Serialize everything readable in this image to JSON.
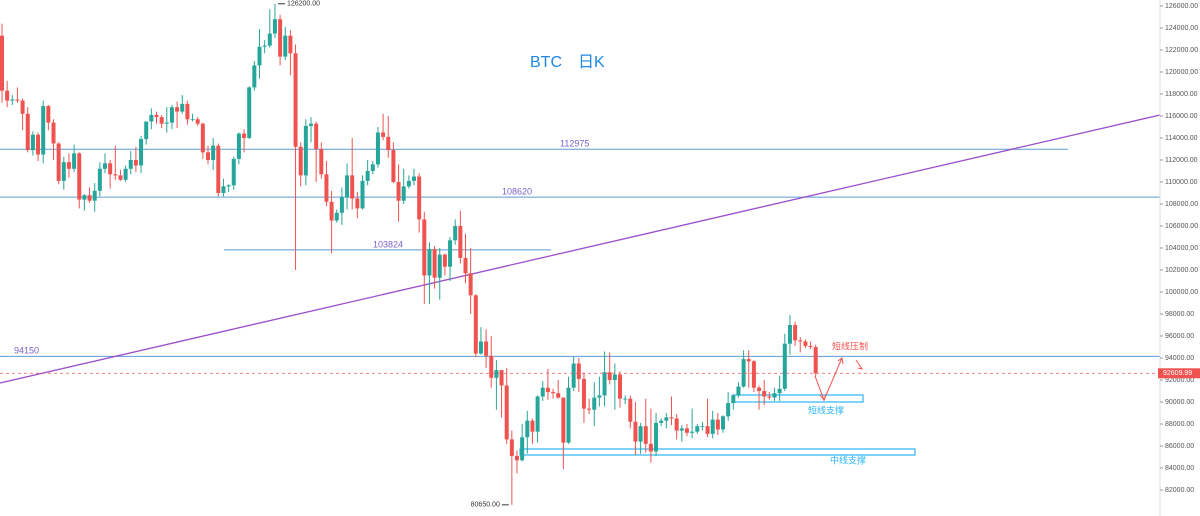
{
  "chart_data": {
    "type": "candlestick",
    "title": "BTC",
    "subtitle": "日K",
    "up_color": "#26a69a",
    "down_color": "#ef5350",
    "ylim": [
      79636,
      126545
    ],
    "yticks": [
      {
        "value": 82000,
        "label": "82000.00"
      },
      {
        "value": 84000,
        "label": "84000.00"
      },
      {
        "value": 86000,
        "label": "86000.00"
      },
      {
        "value": 88000,
        "label": "88000.00"
      },
      {
        "value": 90000,
        "label": "90000.00"
      },
      {
        "value": 92000,
        "label": "92000.00"
      },
      {
        "value": 94000,
        "label": "94000.00"
      },
      {
        "value": 96000,
        "label": "96000.00"
      },
      {
        "value": 98000,
        "label": "98000.00"
      },
      {
        "value": 100000,
        "label": "100000.00"
      },
      {
        "value": 102000,
        "label": "102000.00"
      },
      {
        "value": 104000,
        "label": "104000.00"
      },
      {
        "value": 106000,
        "label": "106000.00"
      },
      {
        "value": 108000,
        "label": "108000.00"
      },
      {
        "value": 110000,
        "label": "110000.00"
      },
      {
        "value": 112000,
        "label": "112000.00"
      },
      {
        "value": 114000,
        "label": "114000.00"
      },
      {
        "value": 116000,
        "label": "116000.00"
      },
      {
        "value": 118000,
        "label": "118000.00"
      },
      {
        "value": 120000,
        "label": "120000.00"
      },
      {
        "value": 122000,
        "label": "122000.00"
      },
      {
        "value": 124000,
        "label": "124000.00"
      },
      {
        "value": 126000,
        "label": "126000.00"
      }
    ],
    "high_label": {
      "value": 126200,
      "label": "126200.00"
    },
    "low_label": {
      "value": 80650,
      "label": "80650.00"
    },
    "levels": [
      112975,
      108620,
      103824,
      94150
    ],
    "current_price": 92609.99,
    "annotations": {
      "resistance": "短线压制",
      "short_support": "短线支撑",
      "mid_support": "中线支撑"
    },
    "candles": [
      [
        123300,
        124400,
        117200,
        118300
      ],
      [
        118300,
        119200,
        116800,
        117400
      ],
      [
        117400,
        117900,
        117000,
        117500
      ],
      [
        117500,
        118600,
        117200,
        117400
      ],
      [
        117400,
        117600,
        114700,
        116200
      ],
      [
        116200,
        116800,
        112700,
        112900
      ],
      [
        112900,
        114600,
        112400,
        114300
      ],
      [
        114300,
        114500,
        111900,
        112500
      ],
      [
        112500,
        117400,
        111700,
        116900
      ],
      [
        116900,
        117000,
        114700,
        115400
      ],
      [
        115400,
        115700,
        112000,
        113500
      ],
      [
        113500,
        113600,
        109800,
        110100
      ],
      [
        110100,
        112300,
        109300,
        111800
      ],
      [
        111800,
        112600,
        110400,
        111200
      ],
      [
        111200,
        113400,
        110900,
        112600
      ],
      [
        112600,
        112700,
        107600,
        108400
      ],
      [
        108400,
        108900,
        107400,
        108800
      ],
      [
        108800,
        109500,
        108100,
        108300
      ],
      [
        108300,
        109900,
        107300,
        109200
      ],
      [
        109200,
        111800,
        108700,
        111200
      ],
      [
        111200,
        112600,
        110800,
        111700
      ],
      [
        111700,
        112000,
        109400,
        110700
      ],
      [
        110700,
        113300,
        110200,
        110600
      ],
      [
        110600,
        111100,
        110100,
        110200
      ],
      [
        110200,
        111500,
        110000,
        111200
      ],
      [
        111200,
        112800,
        110700,
        112000
      ],
      [
        112000,
        113200,
        110900,
        111500
      ],
      [
        111500,
        114200,
        110800,
        113900
      ],
      [
        113900,
        115500,
        113400,
        115500
      ],
      [
        115500,
        116700,
        114800,
        116100
      ],
      [
        116100,
        116400,
        115300,
        115900
      ],
      [
        115900,
        116100,
        114900,
        115300
      ],
      [
        115300,
        116800,
        114500,
        115400
      ],
      [
        115400,
        117000,
        114800,
        116800
      ],
      [
        116800,
        117300,
        114900,
        116400
      ],
      [
        116400,
        117900,
        116200,
        117100
      ],
      [
        117100,
        117400,
        115200,
        115700
      ],
      [
        115700,
        116200,
        115500,
        115700
      ],
      [
        115700,
        115900,
        115100,
        115300
      ],
      [
        115300,
        115400,
        112100,
        112700
      ],
      [
        112700,
        113300,
        111600,
        112000
      ],
      [
        112000,
        114000,
        111100,
        113300
      ],
      [
        113300,
        113500,
        108700,
        109000
      ],
      [
        109000,
        110300,
        108700,
        109600
      ],
      [
        109600,
        109800,
        109100,
        109700
      ],
      [
        109700,
        112300,
        109300,
        112100
      ],
      [
        112100,
        114500,
        111600,
        114400
      ],
      [
        114400,
        114800,
        112700,
        114000
      ],
      [
        114000,
        118700,
        113900,
        118600
      ],
      [
        118600,
        121000,
        118300,
        120600
      ],
      [
        120600,
        123900,
        119400,
        122300
      ],
      [
        122300,
        122900,
        121700,
        122400
      ],
      [
        122400,
        125700,
        122200,
        123500
      ],
      [
        123500,
        126200,
        123100,
        124800
      ],
      [
        124800,
        125200,
        120600,
        121400
      ],
      [
        121400,
        124100,
        121100,
        123300
      ],
      [
        123300,
        123800,
        119700,
        121700
      ],
      [
        121700,
        122500,
        102000,
        113200
      ],
      [
        113200,
        113600,
        109600,
        110600
      ],
      [
        110600,
        115700,
        109700,
        115100
      ],
      [
        115100,
        115900,
        113600,
        115300
      ],
      [
        115300,
        115500,
        110000,
        113000
      ],
      [
        113000,
        113600,
        110300,
        110700
      ],
      [
        110700,
        111900,
        107800,
        108200
      ],
      [
        108200,
        109200,
        103500,
        106500
      ],
      [
        106500,
        107500,
        106300,
        107200
      ],
      [
        107200,
        109500,
        106100,
        108600
      ],
      [
        108600,
        111700,
        107500,
        110600
      ],
      [
        110600,
        114000,
        107500,
        108500
      ],
      [
        108500,
        109100,
        106700,
        107600
      ],
      [
        107600,
        110600,
        107500,
        110100
      ],
      [
        110100,
        112000,
        109700,
        111000
      ],
      [
        111000,
        111900,
        110700,
        111600
      ],
      [
        111600,
        115000,
        111300,
        114500
      ],
      [
        114500,
        116200,
        113800,
        114100
      ],
      [
        114100,
        116000,
        112200,
        112900
      ],
      [
        112900,
        113600,
        109900,
        110000
      ],
      [
        110000,
        111600,
        106400,
        108300
      ],
      [
        108300,
        111200,
        108000,
        109600
      ],
      [
        109600,
        110600,
        109400,
        110100
      ],
      [
        110100,
        111200,
        109700,
        110500
      ],
      [
        110500,
        110800,
        105400,
        106600
      ],
      [
        106600,
        107300,
        98900,
        101500
      ],
      [
        101500,
        104500,
        98900,
        103900
      ],
      [
        103900,
        104200,
        100300,
        101300
      ],
      [
        101300,
        104000,
        99300,
        103400
      ],
      [
        103400,
        103500,
        101500,
        102300
      ],
      [
        102300,
        105000,
        101000,
        104700
      ],
      [
        104700,
        106600,
        104300,
        106000
      ],
      [
        106000,
        107400,
        102600,
        103100
      ],
      [
        103100,
        105300,
        100800,
        101700
      ],
      [
        101700,
        104000,
        98000,
        99700
      ],
      [
        99700,
        99800,
        94100,
        94400
      ],
      [
        94400,
        96800,
        94300,
        95500
      ],
      [
        95500,
        96600,
        93100,
        94200
      ],
      [
        94200,
        96000,
        91300,
        92200
      ],
      [
        92200,
        93800,
        89300,
        92900
      ],
      [
        92900,
        92900,
        88600,
        91500
      ],
      [
        91500,
        93100,
        86200,
        86600
      ],
      [
        86600,
        87400,
        80650,
        85100
      ],
      [
        85100,
        85600,
        83500,
        84700
      ],
      [
        84700,
        88000,
        84600,
        86800
      ],
      [
        86800,
        89200,
        85300,
        88300
      ],
      [
        88300,
        88500,
        86200,
        87300
      ],
      [
        87300,
        90600,
        86300,
        90500
      ],
      [
        90500,
        91900,
        90100,
        91300
      ],
      [
        91300,
        93000,
        90200,
        90900
      ],
      [
        90900,
        91200,
        90300,
        90800
      ],
      [
        90800,
        92000,
        90300,
        90400
      ],
      [
        90400,
        90400,
        83900,
        86300
      ],
      [
        86300,
        92300,
        86200,
        91300
      ],
      [
        91300,
        94100,
        91000,
        93500
      ],
      [
        93500,
        94000,
        90900,
        92100
      ],
      [
        92100,
        92700,
        88100,
        89400
      ],
      [
        89400,
        90300,
        88900,
        89300
      ],
      [
        89300,
        91800,
        87800,
        90400
      ],
      [
        90400,
        92300,
        89600,
        90600
      ],
      [
        90600,
        94600,
        89600,
        92700
      ],
      [
        92700,
        94500,
        91600,
        92000
      ],
      [
        92000,
        93500,
        89300,
        92500
      ],
      [
        92500,
        92800,
        89500,
        90300
      ],
      [
        90300,
        90600,
        89800,
        90300
      ],
      [
        90300,
        90600,
        87600,
        88200
      ],
      [
        88200,
        90000,
        85200,
        86400
      ],
      [
        86400,
        88100,
        85300,
        87800
      ],
      [
        87800,
        90300,
        85400,
        86200
      ],
      [
        86200,
        89400,
        84500,
        85500
      ],
      [
        85500,
        89000,
        85100,
        88100
      ],
      [
        88100,
        88500,
        87800,
        88300
      ],
      [
        88300,
        89000,
        87600,
        88600
      ],
      [
        88600,
        90500,
        87900,
        88500
      ],
      [
        88500,
        88900,
        86600,
        87400
      ],
      [
        87400,
        87900,
        86400,
        87600
      ],
      [
        87600,
        88000,
        86900,
        87200
      ],
      [
        87200,
        89400,
        86700,
        87300
      ],
      [
        87300,
        88000,
        87100,
        87800
      ],
      [
        87800,
        88200,
        87400,
        87800
      ],
      [
        87800,
        90300,
        86800,
        87100
      ],
      [
        87100,
        89200,
        86700,
        88400
      ],
      [
        88400,
        89000,
        87000,
        87500
      ],
      [
        87500,
        88800,
        87200,
        88700
      ],
      [
        88700,
        90900,
        88300,
        89900
      ],
      [
        89900,
        90700,
        89300,
        90600
      ],
      [
        90600,
        91800,
        90400,
        91400
      ],
      [
        91400,
        94700,
        91300,
        93900
      ],
      [
        93900,
        94700,
        91300,
        93700
      ],
      [
        93700,
        93800,
        90900,
        91300
      ],
      [
        91300,
        91500,
        89300,
        91000
      ],
      [
        91000,
        92000,
        89700,
        90500
      ],
      [
        90500,
        90900,
        90200,
        90400
      ],
      [
        90400,
        91300,
        90100,
        90800
      ],
      [
        90800,
        92400,
        90100,
        91200
      ],
      [
        91200,
        96200,
        91000,
        95300
      ],
      [
        95300,
        97900,
        94300,
        97000
      ],
      [
        97000,
        97300,
        95100,
        95600
      ],
      [
        95600,
        95900,
        94500,
        95500
      ],
      [
        95500,
        95700,
        94900,
        95100
      ],
      [
        95100,
        95500,
        94800,
        95000
      ],
      [
        95000,
        95200,
        92300,
        92609.99
      ]
    ]
  }
}
